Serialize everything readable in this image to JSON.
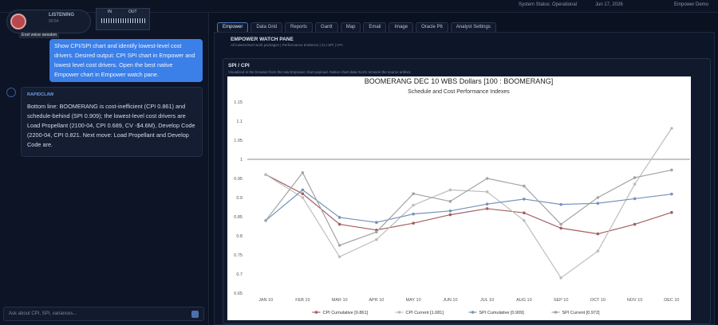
{
  "header": {
    "status": "System Status: Operational",
    "date": "Jun 17, 2026",
    "user": "Empower Demo"
  },
  "voice": {
    "state": "LISTENING",
    "timer": "00:54",
    "in": "IN",
    "out": "OUT",
    "tooltip": "End voice session"
  },
  "conversation": {
    "user_message": "Show CPI/SPI chart and identify lowest-level cost drivers. Desired output: CPI SPI chart in Empower and lowest level cost drivers. Open the best native Empower chart in Empower watch pane.",
    "assistant_name": "RAPIDCLAW",
    "assistant_message": "Bottom line: BOOMERANG is cost-inefficient (CPI 0.861) and schedule-behind (SPI 0.909); the lowest-level cost drivers are Load Propellant (2100-04, CPI 0.689, CV -$4.6M), Develop Code (2200-04, CPI 0.821. Next move: Load Propellant and Develop Code are.",
    "input_placeholder": "Ask about CPI, SPI, variances..."
  },
  "tabs": [
    "Empower",
    "Data Grid",
    "Reports",
    "Gantt",
    "Map",
    "Email",
    "Image",
    "Oracle P6",
    "Analyst Settings"
  ],
  "pane": {
    "title": "EMPOWER WATCH PANE",
    "subtitle": "All lowest-level work packages | Performance Evidence | CLI SPI | CPI",
    "section_title": "SPI / CPI",
    "section_note": "Visualized in the browser from the raw Empower chart payload. Native chart data XLSX remains the source artifact."
  },
  "chart_data": {
    "type": "line",
    "title": "BOOMERANG DEC 10 WBS Dollars [100 : BOOMERANG]",
    "subtitle": "Schedule and Cost Performance Indexes",
    "categories": [
      "JAN 10",
      "FEB 10",
      "MAR 10",
      "APR 10",
      "MAY 10",
      "JUN 10",
      "JUL 10",
      "AUG 10",
      "SEP 10",
      "OCT 10",
      "NOV 10",
      "DEC 10"
    ],
    "series": [
      {
        "name": "CPI Cumulative [0.861]",
        "color": "#a35f63",
        "values": [
          0.96,
          0.91,
          0.83,
          0.815,
          0.833,
          0.855,
          0.871,
          0.86,
          0.82,
          0.805,
          0.83,
          0.861
        ]
      },
      {
        "name": "CPI Current [1.081]",
        "color": "#bdbdbd",
        "values": [
          0.96,
          0.9,
          0.745,
          0.79,
          0.88,
          0.92,
          0.915,
          0.84,
          0.69,
          0.76,
          0.935,
          1.081
        ]
      },
      {
        "name": "SPI Cumulative [0.909]",
        "color": "#7592bb",
        "values": [
          0.84,
          0.92,
          0.848,
          0.835,
          0.857,
          0.865,
          0.883,
          0.896,
          0.882,
          0.885,
          0.897,
          0.909
        ]
      },
      {
        "name": "SPI Current [0.972]",
        "color": "#a3a3a3",
        "values": [
          0.84,
          0.965,
          0.775,
          0.81,
          0.91,
          0.89,
          0.95,
          0.93,
          0.83,
          0.9,
          0.952,
          0.972
        ]
      }
    ],
    "ylim": [
      0.65,
      1.15
    ],
    "yticks": [
      0.65,
      0.7,
      0.75,
      0.8,
      0.85,
      0.9,
      0.95,
      1,
      1.05,
      1.1,
      1.15
    ],
    "reference_line": 1,
    "grid": false,
    "legend": "bottom"
  }
}
